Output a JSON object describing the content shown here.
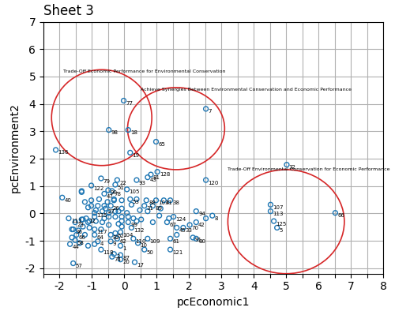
{
  "chart_data": {
    "type": "scatter",
    "title": "Sheet 3",
    "x_label": "pcEconomic1",
    "y_label": "pcEnvironment2",
    "xlim": [
      -2.5,
      8.0
    ],
    "ylim": [
      -2.2,
      7.0
    ],
    "xticks": [
      {
        "value": -2.5,
        "label": ""
      },
      -2,
      {
        "value": -1.5,
        "label": ""
      },
      -1,
      {
        "value": -0.5,
        "label": ""
      },
      0,
      {
        "value": 0.5,
        "label": ""
      },
      1,
      {
        "value": 1.5,
        "label": ""
      },
      2,
      {
        "value": 2.5,
        "label": ""
      },
      3,
      {
        "value": 3.5,
        "label": ""
      },
      4,
      {
        "value": 4.5,
        "label": ""
      },
      5,
      {
        "value": 5.5,
        "label": ""
      },
      6,
      {
        "value": 6.5,
        "label": ""
      },
      7,
      {
        "value": 7.5,
        "label": ""
      },
      8
    ],
    "yticks": [
      -2,
      -1,
      0,
      1,
      2,
      3,
      4,
      5,
      6,
      7
    ],
    "grid": true,
    "color": "#1f77b4",
    "marker": "o",
    "shapes": [
      {
        "type": "ellipse",
        "cx": -0.7,
        "cy": 3.5,
        "rx": 1.55,
        "ry": 1.75,
        "color": "#d62728",
        "label": "Trade-Off Economic Performance for Environmental Conservation",
        "label_x": -1.9,
        "label_y": 5.1
      },
      {
        "type": "ellipse",
        "cx": 1.6,
        "cy": 3.1,
        "rx": 1.5,
        "ry": 1.5,
        "color": "#d62728",
        "label": "Achieve Synergies Between Environmental Conservation and Economic Performance",
        "label_x": 0.5,
        "label_y": 4.45
      },
      {
        "type": "ellipse",
        "cx": 5.0,
        "cy": -0.3,
        "rx": 1.8,
        "ry": 1.9,
        "color": "#d62728",
        "label": "Trade-Off Environmental Conservation for Economic Performance",
        "label_x": 3.2,
        "label_y": 1.55
      }
    ],
    "points": [
      [
        -0.5,
        0.85,
        "90"
      ],
      [
        -0.38,
        0.82,
        "78"
      ],
      [
        -0.62,
        0.72,
        "47"
      ],
      [
        0.08,
        0.88,
        "105"
      ],
      [
        -0.28,
        1.05,
        "51"
      ],
      [
        -0.22,
        1.22,
        "22"
      ],
      [
        0.38,
        1.22,
        "93"
      ],
      [
        0.72,
        1.32,
        "43"
      ],
      [
        -0.72,
        1.28,
        "79"
      ],
      [
        -1.02,
        1.02,
        "122"
      ],
      [
        -0.48,
        3.05,
        "98"
      ],
      [
        0.12,
        3.05,
        "18"
      ],
      [
        0.18,
        2.22,
        "19"
      ],
      [
        -0.02,
        4.12,
        "77"
      ],
      [
        -2.12,
        2.32,
        "136"
      ],
      [
        0.98,
        2.62,
        "65"
      ],
      [
        2.52,
        3.82,
        "7"
      ],
      [
        1.02,
        1.52,
        "128"
      ],
      [
        2.52,
        1.22,
        "120"
      ],
      [
        0.82,
        1.42,
        "81"
      ],
      [
        0.68,
        0.48,
        "88"
      ],
      [
        0.62,
        0.28,
        "31"
      ],
      [
        0.88,
        0.28,
        "89"
      ],
      [
        0.98,
        0.48,
        "103"
      ],
      [
        1.22,
        0.48,
        "41"
      ],
      [
        1.42,
        0.48,
        "38"
      ],
      [
        1.52,
        -0.12,
        "124"
      ],
      [
        1.32,
        -0.32,
        "67"
      ],
      [
        1.62,
        -0.52,
        "45"
      ],
      [
        1.82,
        -0.52,
        "33"
      ],
      [
        2.02,
        -0.42,
        "70"
      ],
      [
        2.22,
        -0.32,
        "42"
      ],
      [
        2.22,
        -0.92,
        "80"
      ],
      [
        2.12,
        -0.88,
        "91"
      ],
      [
        1.42,
        -0.92,
        "61"
      ],
      [
        1.42,
        -1.32,
        "121"
      ],
      [
        0.72,
        -0.92,
        "109"
      ],
      [
        0.62,
        -1.32,
        "50"
      ],
      [
        0.42,
        -1.08,
        "10"
      ],
      [
        0.28,
        -0.92,
        "110"
      ],
      [
        0.22,
        -0.52,
        "132"
      ],
      [
        0.12,
        -0.32,
        "99"
      ],
      [
        -0.12,
        -0.68,
        "104"
      ],
      [
        -0.28,
        -0.72,
        "52"
      ],
      [
        -0.42,
        -0.78,
        "82"
      ],
      [
        -0.22,
        -0.92,
        "62"
      ],
      [
        -0.42,
        -1.02,
        "9"
      ],
      [
        -0.12,
        -1.18,
        "1"
      ],
      [
        -0.12,
        -1.52,
        "87"
      ],
      [
        -0.32,
        -1.48,
        "2"
      ],
      [
        -0.38,
        -1.58,
        "74"
      ],
      [
        -0.12,
        -1.68,
        "20"
      ],
      [
        0.32,
        -1.78,
        "17"
      ],
      [
        -0.72,
        -1.32,
        "118"
      ],
      [
        -0.82,
        -1.02,
        "4"
      ],
      [
        -0.92,
        -0.78,
        "64"
      ],
      [
        -0.92,
        -0.58,
        "117"
      ],
      [
        -1.18,
        -0.18,
        "12"
      ],
      [
        -0.92,
        0.02,
        "135"
      ],
      [
        -0.58,
        0.18,
        "27"
      ],
      [
        -0.42,
        0.28,
        "26"
      ],
      [
        -1.52,
        -0.32,
        "23"
      ],
      [
        -1.72,
        -0.18,
        "111"
      ],
      [
        -1.92,
        0.58,
        "40"
      ],
      [
        -1.58,
        -1.82,
        "57"
      ],
      [
        4.52,
        0.32,
        "107"
      ],
      [
        4.52,
        0.08,
        "113"
      ],
      [
        5.02,
        1.78,
        "32"
      ],
      [
        6.52,
        0.02,
        "66"
      ],
      [
        4.72,
        -0.52,
        "5"
      ],
      [
        0.18,
        0.52,
        "53"
      ],
      [
        4.62,
        -0.28,
        "125"
      ],
      [
        2.72,
        -0.08,
        "8"
      ],
      [
        2.22,
        0.08,
        "94"
      ],
      [
        -0.82,
        0.28,
        null
      ],
      [
        -0.62,
        0.28,
        null
      ],
      [
        -1.12,
        0.22,
        null
      ],
      [
        -1.32,
        0.82,
        null
      ],
      [
        -0.32,
        0.48,
        null
      ],
      [
        -0.08,
        0.18,
        null
      ],
      [
        0.08,
        0.02,
        null
      ],
      [
        -0.18,
        0.08,
        null
      ],
      [
        -0.28,
        0.08,
        null
      ],
      [
        -0.48,
        0.02,
        null
      ],
      [
        -0.68,
        0.08,
        null
      ],
      [
        -0.88,
        0.12,
        null
      ],
      [
        -1.02,
        0.28,
        null
      ],
      [
        -1.22,
        0.42,
        null
      ],
      [
        -0.48,
        -0.12,
        null
      ],
      [
        -0.28,
        -0.12,
        null
      ],
      [
        -0.08,
        -0.48,
        null
      ],
      [
        -0.68,
        -0.32,
        null
      ],
      [
        -0.88,
        -0.28,
        null
      ],
      [
        -1.08,
        -0.28,
        null
      ],
      [
        -1.28,
        -0.22,
        null
      ],
      [
        -1.08,
        -0.52,
        null
      ],
      [
        -1.28,
        -0.48,
        null
      ],
      [
        -1.48,
        -0.78,
        "66"
      ],
      [
        -1.62,
        -0.88,
        null
      ],
      [
        -1.38,
        -1.08,
        null
      ],
      [
        -1.52,
        -0.98,
        "58"
      ],
      [
        -1.68,
        -1.12,
        "44"
      ],
      [
        -1.58,
        -0.58,
        "36"
      ],
      [
        -1.32,
        0.78,
        null
      ],
      [
        0.38,
        0.52,
        null
      ],
      [
        0.22,
        0.32,
        null
      ],
      [
        0.48,
        0.12,
        null
      ],
      [
        0.72,
        0.08,
        null
      ],
      [
        1.08,
        -0.08,
        null
      ],
      [
        0.52,
        -0.22,
        null
      ],
      [
        0.28,
        -0.18,
        null
      ],
      [
        -0.08,
        0.48,
        null
      ],
      [
        -0.32,
        0.52,
        null
      ],
      [
        -0.52,
        0.42,
        null
      ],
      [
        -0.78,
        0.52,
        null
      ],
      [
        -1.02,
        0.48,
        null
      ],
      [
        -0.92,
        -0.12,
        null
      ],
      [
        -1.12,
        -0.32,
        null
      ],
      [
        -1.32,
        -0.22,
        null
      ],
      [
        -0.92,
        -1.12,
        null
      ],
      [
        -1.12,
        -1.18,
        null
      ],
      [
        0.38,
        -0.28,
        null
      ],
      [
        -0.18,
        -0.38,
        null
      ],
      [
        -0.08,
        -0.28,
        null
      ],
      [
        0.88,
        -0.32,
        null
      ],
      [
        1.12,
        0.18,
        null
      ],
      [
        1.38,
        -0.18,
        null
      ],
      [
        2.52,
        -0.18,
        null
      ],
      [
        1.62,
        -0.78,
        null
      ],
      [
        -0.48,
        -0.42,
        null
      ],
      [
        -0.08,
        -0.12,
        null
      ],
      [
        0.12,
        -0.12,
        null
      ],
      [
        -1.42,
        -0.62,
        null
      ],
      [
        -1.22,
        -0.78,
        null
      ],
      [
        -0.72,
        -0.58,
        null
      ],
      [
        -0.62,
        -0.18,
        null
      ],
      [
        -1.62,
        -0.58,
        null
      ]
    ]
  }
}
